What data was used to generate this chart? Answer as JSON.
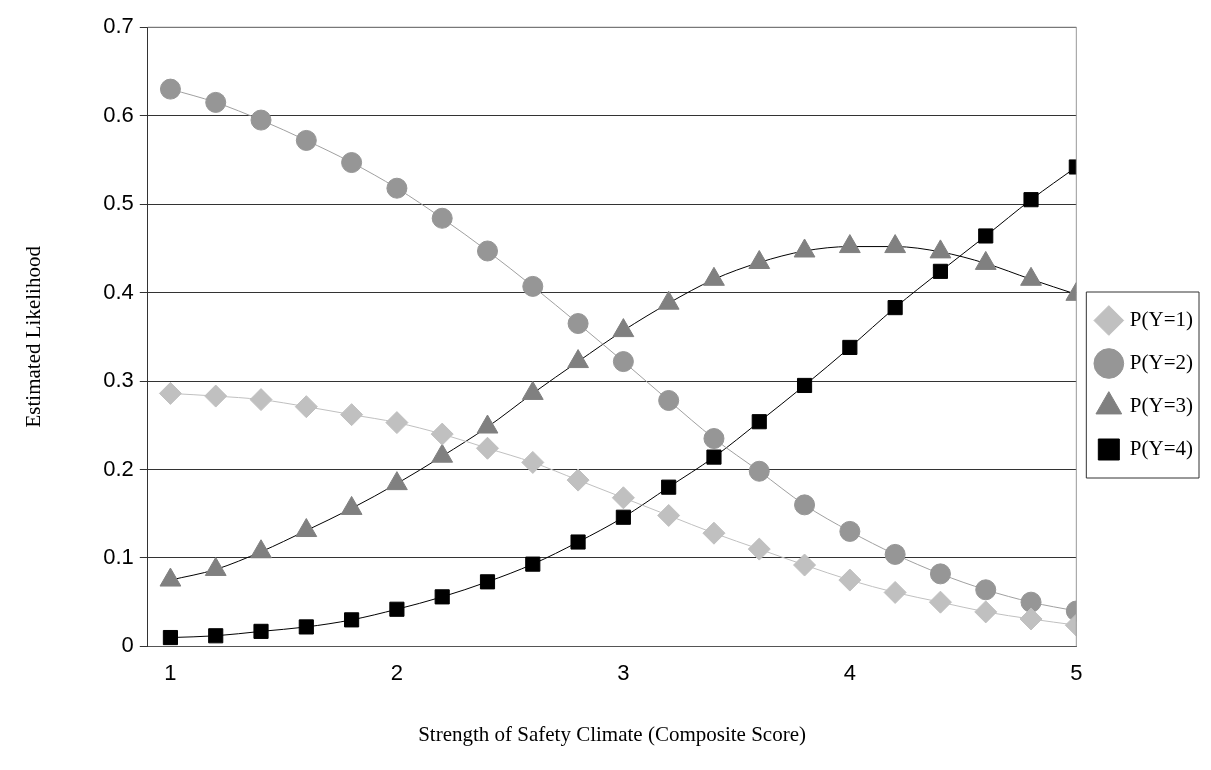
{
  "chart_data": {
    "type": "line",
    "xlabel": "Strength of Safety Climate (Composite Score)",
    "ylabel": "Estimated Likelihood",
    "x": [
      1,
      1.2,
      1.4,
      1.6,
      1.8,
      2,
      2.2,
      2.4,
      2.6,
      2.8,
      3,
      3.2,
      3.4,
      3.6,
      3.8,
      4,
      4.2,
      4.4,
      4.6,
      4.8,
      5
    ],
    "series": [
      {
        "name": "P(Y=1)",
        "color": "#c0c0c0",
        "marker": "diamond",
        "values": [
          0.286,
          0.283,
          0.279,
          0.271,
          0.262,
          0.253,
          0.24,
          0.224,
          0.208,
          0.188,
          0.168,
          0.148,
          0.128,
          0.11,
          0.092,
          0.075,
          0.061,
          0.05,
          0.039,
          0.031,
          0.024
        ]
      },
      {
        "name": "P(Y=2)",
        "color": "#969696",
        "marker": "circle",
        "values": [
          0.63,
          0.615,
          0.595,
          0.572,
          0.547,
          0.518,
          0.484,
          0.447,
          0.407,
          0.365,
          0.322,
          0.278,
          0.235,
          0.198,
          0.16,
          0.13,
          0.104,
          0.082,
          0.064,
          0.05,
          0.04
        ]
      },
      {
        "name": "P(Y=3)",
        "color": "#808080",
        "marker": "triangle",
        "values": [
          0.075,
          0.087,
          0.107,
          0.131,
          0.156,
          0.184,
          0.215,
          0.248,
          0.286,
          0.322,
          0.357,
          0.388,
          0.415,
          0.434,
          0.447,
          0.452,
          0.452,
          0.446,
          0.433,
          0.415,
          0.398
        ]
      },
      {
        "name": "P(Y=4)",
        "color": "#000000",
        "marker": "square",
        "values": [
          0.01,
          0.012,
          0.017,
          0.022,
          0.03,
          0.042,
          0.056,
          0.073,
          0.093,
          0.118,
          0.146,
          0.18,
          0.214,
          0.254,
          0.295,
          0.338,
          0.383,
          0.424,
          0.464,
          0.505,
          0.542
        ]
      }
    ],
    "xlim": [
      0.9,
      5
    ],
    "xticks": [
      1,
      2,
      3,
      4,
      5
    ],
    "ylim": [
      0,
      0.7
    ],
    "yticks": [
      0,
      0.1,
      0.2,
      0.3,
      0.4,
      0.5,
      0.6,
      0.7
    ],
    "grid": "y",
    "legend": "right",
    "line_style": "solid"
  }
}
